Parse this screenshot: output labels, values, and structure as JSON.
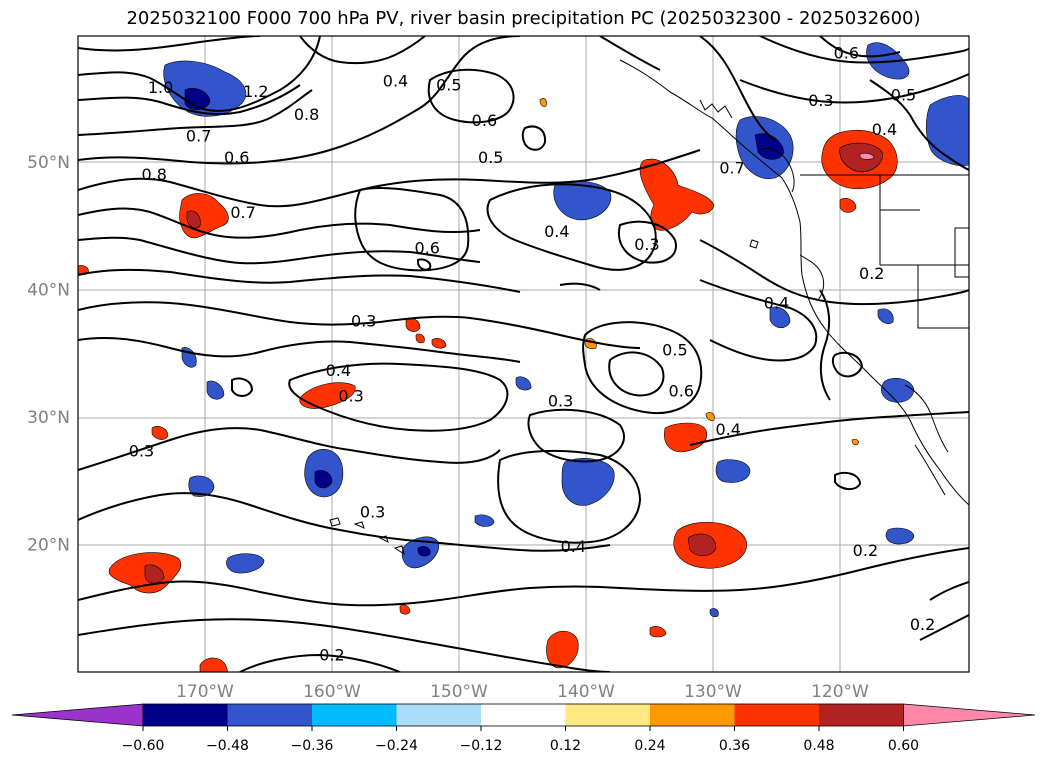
{
  "title": "2025032100 F000 700 hPa PV, river basin precipitation PC (2025032300 - 2025032600)",
  "lat_labels": [
    {
      "text": "50°N",
      "lat": 50
    },
    {
      "text": "40°N",
      "lat": 40
    },
    {
      "text": "30°N",
      "lat": 30
    },
    {
      "text": "20°N",
      "lat": 20
    }
  ],
  "lon_labels": [
    {
      "text": "170°W",
      "lon": -170
    },
    {
      "text": "160°W",
      "lon": -160
    },
    {
      "text": "150°W",
      "lon": -150
    },
    {
      "text": "140°W",
      "lon": -140
    },
    {
      "text": "130°W",
      "lon": -130
    },
    {
      "text": "120°W",
      "lon": -120
    }
  ],
  "colorbar": {
    "colors": [
      "#9933cc",
      "#000088",
      "#3355cc",
      "#00bbff",
      "#aaddf7",
      "#ffffff",
      "#ffe880",
      "#ff9900",
      "#ff3300",
      "#b22222",
      "#ff88aa"
    ],
    "ticks": [
      "−0.60",
      "−0.48",
      "−0.36",
      "−0.24",
      "−0.12",
      "0.12",
      "0.24",
      "0.36",
      "0.48",
      "0.60"
    ]
  },
  "contour_labels": [
    {
      "text": "1.0",
      "lon": -173.5,
      "lat": 55.8
    },
    {
      "text": "1.2",
      "lon": -166,
      "lat": 55.5
    },
    {
      "text": "0.8",
      "lon": -162,
      "lat": 53.7
    },
    {
      "text": "0.7",
      "lon": -170.5,
      "lat": 52.0
    },
    {
      "text": "0.6",
      "lon": -167.5,
      "lat": 50.3
    },
    {
      "text": "0.8",
      "lon": -174,
      "lat": 49.0
    },
    {
      "text": "0.7",
      "lon": -167,
      "lat": 46.0
    },
    {
      "text": "0.6",
      "lon": -152.5,
      "lat": 43.2
    },
    {
      "text": "0.4",
      "lon": -155,
      "lat": 56.3
    },
    {
      "text": "0.5",
      "lon": -150.8,
      "lat": 56.0
    },
    {
      "text": "0.6",
      "lon": -148,
      "lat": 53.2
    },
    {
      "text": "0.5",
      "lon": -147.5,
      "lat": 50.3
    },
    {
      "text": "0.4",
      "lon": -142.3,
      "lat": 44.5
    },
    {
      "text": "0.3",
      "lon": -135.2,
      "lat": 43.5
    },
    {
      "text": "0.7",
      "lon": -128.5,
      "lat": 49.5
    },
    {
      "text": "0.6",
      "lon": -119.5,
      "lat": 58.5
    },
    {
      "text": "0.3",
      "lon": -121.5,
      "lat": 54.8
    },
    {
      "text": "0.4",
      "lon": -116.5,
      "lat": 52.5
    },
    {
      "text": "0.5",
      "lon": -115,
      "lat": 55.2
    },
    {
      "text": "0.2",
      "lon": -117.5,
      "lat": 41.2
    },
    {
      "text": "0.4",
      "lon": -125,
      "lat": 38.9
    },
    {
      "text": "0.3",
      "lon": -157.5,
      "lat": 37.5
    },
    {
      "text": "0.4",
      "lon": -159.5,
      "lat": 33.6
    },
    {
      "text": "0.3",
      "lon": -158.5,
      "lat": 31.6
    },
    {
      "text": "0.5",
      "lon": -133,
      "lat": 35.2
    },
    {
      "text": "0.6",
      "lon": -132.5,
      "lat": 32.0
    },
    {
      "text": "0.3",
      "lon": -142,
      "lat": 31.2
    },
    {
      "text": "0.4",
      "lon": -128.8,
      "lat": 29.0
    },
    {
      "text": "0.3",
      "lon": -175,
      "lat": 27.3
    },
    {
      "text": "0.3",
      "lon": -156.8,
      "lat": 22.5
    },
    {
      "text": "0.4",
      "lon": -141,
      "lat": 19.8
    },
    {
      "text": "0.2",
      "lon": -118,
      "lat": 19.5
    },
    {
      "text": "0.2",
      "lon": -160,
      "lat": 11.3
    },
    {
      "text": "0.2",
      "lon": -113.5,
      "lat": 13.7
    }
  ]
}
